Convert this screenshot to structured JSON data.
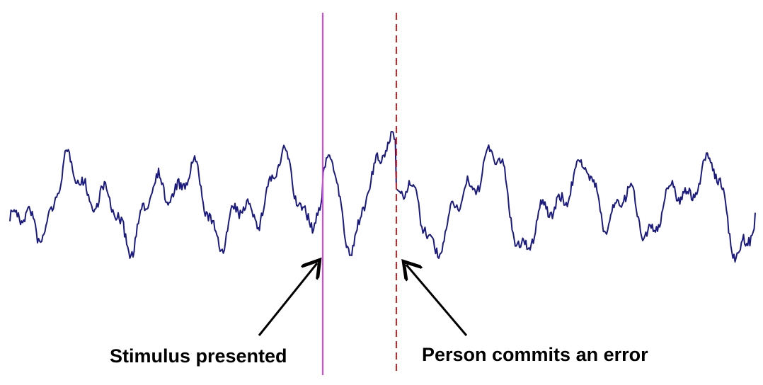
{
  "annotations": {
    "stimulus_label": "Stimulus presented",
    "error_label": "Person commits an error"
  },
  "colors": {
    "signal": "#1a1a80",
    "stimulus_line": "#e040e8",
    "error_line": "#e02020",
    "arrow": "#000000",
    "background": "#ffffff"
  },
  "signal": {
    "shape": "noisy EEG-like trace with a positive deflection between the stimulus and the error",
    "pre_stimulus_amplitude": "moderate",
    "post_stimulus_peaks": [
      "large positive peak right after stimulus",
      "second positive peak just before the error"
    ]
  },
  "markers": [
    {
      "name": "stimulus",
      "style": "solid"
    },
    {
      "name": "error",
      "style": "dashed"
    }
  ]
}
